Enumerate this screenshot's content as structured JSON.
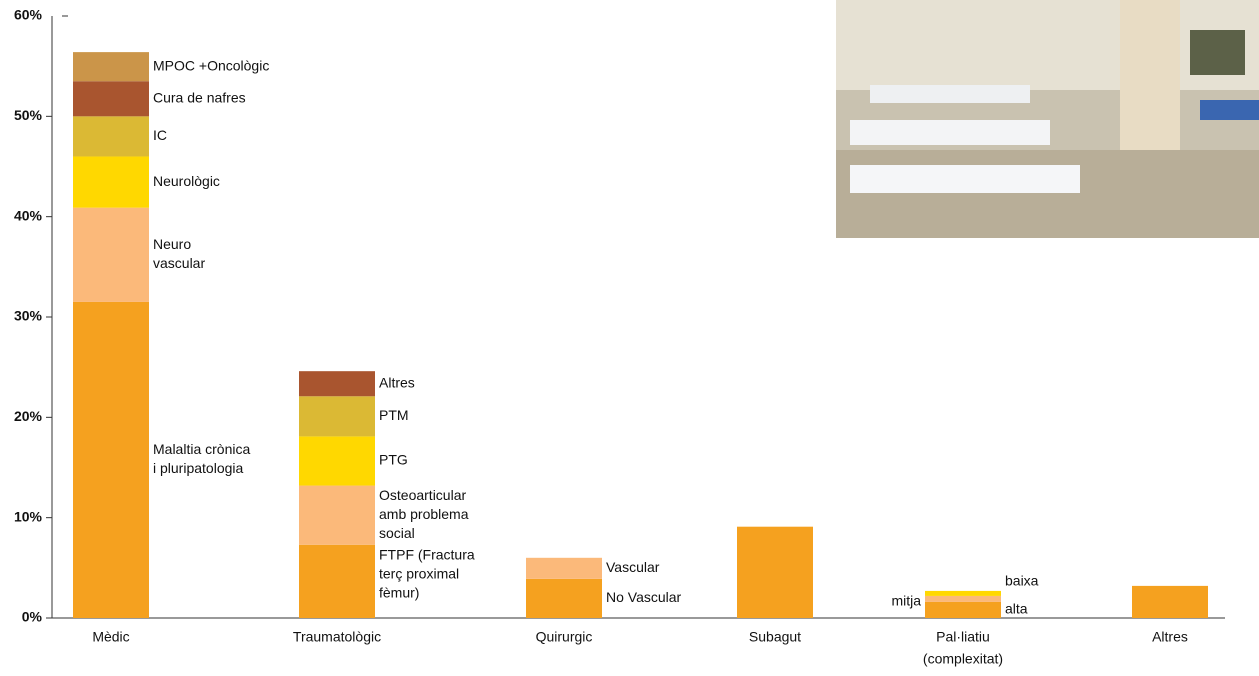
{
  "chart_data": {
    "type": "stacked-bar",
    "ylim": [
      0,
      60
    ],
    "yticks": [
      {
        "value": 0,
        "label": "0%"
      },
      {
        "value": 10,
        "label": "10%"
      },
      {
        "value": 20,
        "label": "20%"
      },
      {
        "value": 30,
        "label": "30%"
      },
      {
        "value": 40,
        "label": "40%"
      },
      {
        "value": 50,
        "label": "50%"
      },
      {
        "value": 60,
        "label": "60%"
      }
    ],
    "bars": [
      {
        "category": [
          "Mèdic"
        ],
        "segments": [
          {
            "label": [
              "Malaltia crònica",
              "i pluripatologia"
            ],
            "value": 31.5,
            "color": "#f5a11f"
          },
          {
            "label": [
              "Neuro",
              "vascular"
            ],
            "value": 9.4,
            "color": "#fbb97a"
          },
          {
            "label": [
              "Neurològic"
            ],
            "value": 5.1,
            "color": "#ffd800"
          },
          {
            "label": [
              "IC"
            ],
            "value": 4.0,
            "color": "#dbb934"
          },
          {
            "label": [
              "Cura de nafres"
            ],
            "value": 3.5,
            "color": "#a9552f"
          },
          {
            "label": [
              "MPOC +Oncològic"
            ],
            "value": 2.9,
            "color": "#cb9549"
          }
        ]
      },
      {
        "category": [
          "Traumatològic"
        ],
        "segments": [
          {
            "label": [
              "FTPF (Fractura",
              "terç proximal",
              "fèmur)"
            ],
            "value": 7.3,
            "color": "#f5a11f"
          },
          {
            "label": [
              "Osteoarticular",
              "amb problema",
              "social"
            ],
            "value": 5.9,
            "color": "#fbb97a"
          },
          {
            "label": [
              "PTG"
            ],
            "value": 4.9,
            "color": "#ffd800"
          },
          {
            "label": [
              "PTM"
            ],
            "value": 4.0,
            "color": "#dbb934"
          },
          {
            "label": [
              "Altres"
            ],
            "value": 2.5,
            "color": "#a9552f"
          }
        ]
      },
      {
        "category": [
          "Quirurgic"
        ],
        "segments": [
          {
            "label": [
              "No Vascular"
            ],
            "value": 3.9,
            "color": "#f5a11f"
          },
          {
            "label": [
              "Vascular"
            ],
            "value": 2.1,
            "color": "#fbb97a"
          }
        ]
      },
      {
        "category": [
          "Subagut"
        ],
        "segments": [
          {
            "value": 9.1,
            "color": "#f5a11f"
          }
        ]
      },
      {
        "category": [
          "Pal·liatiu",
          "(complexitat)"
        ],
        "segments": [
          {
            "label": [
              "alta"
            ],
            "value": 1.6,
            "color": "#f5a11f"
          },
          {
            "label": [
              "mitja"
            ],
            "value": 0.6,
            "color": "#fbb97a"
          },
          {
            "label": [
              "baixa"
            ],
            "value": 0.5,
            "color": "#ffd800"
          }
        ]
      },
      {
        "category": [
          "Altres"
        ],
        "segments": [
          {
            "value": 3.2,
            "color": "#f5a11f"
          }
        ]
      }
    ]
  }
}
